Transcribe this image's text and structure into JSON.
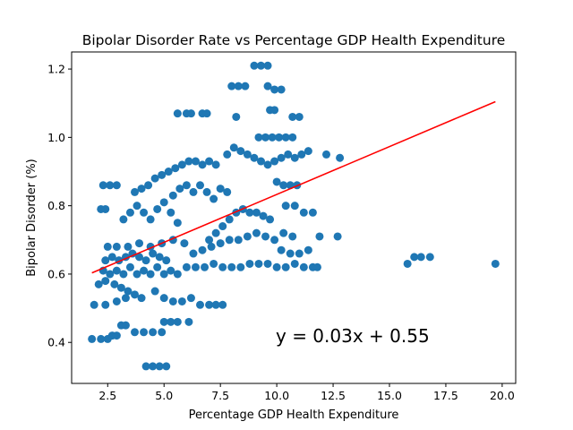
{
  "chart_data": {
    "type": "scatter",
    "title": "Bipolar Disorder Rate vs Percentage GDP Health Expenditure",
    "xlabel": "Percentage GDP Health Expenditure",
    "ylabel": "Bipolar Disorder (%)",
    "xlim": [
      0.9,
      20.6
    ],
    "ylim": [
      0.28,
      1.25
    ],
    "xticks": [
      2.5,
      5.0,
      7.5,
      10.0,
      12.5,
      15.0,
      17.5,
      20.0
    ],
    "xtick_labels": [
      "2.5",
      "5.0",
      "7.5",
      "10.0",
      "12.5",
      "15.0",
      "17.5",
      "20.0"
    ],
    "yticks": [
      0.4,
      0.6,
      0.8,
      1.0,
      1.2
    ],
    "ytick_labels": [
      "0.4",
      "0.6",
      "0.8",
      "1.0",
      "1.2"
    ],
    "grid": false,
    "point_color": "#1f77b4",
    "line_color": "#ff0000",
    "annotation": "y = 0.03x + 0.55",
    "fit": {
      "slope": 0.028,
      "intercept": 0.553,
      "x_range": [
        1.8,
        19.7
      ]
    },
    "points": [
      [
        1.8,
        0.41
      ],
      [
        2.2,
        0.41
      ],
      [
        2.5,
        0.41
      ],
      [
        2.7,
        0.42
      ],
      [
        2.9,
        0.42
      ],
      [
        1.9,
        0.51
      ],
      [
        2.4,
        0.51
      ],
      [
        2.9,
        0.52
      ],
      [
        3.3,
        0.53
      ],
      [
        2.1,
        0.57
      ],
      [
        2.4,
        0.58
      ],
      [
        2.8,
        0.57
      ],
      [
        3.1,
        0.56
      ],
      [
        3.4,
        0.55
      ],
      [
        3.7,
        0.54
      ],
      [
        4.0,
        0.53
      ],
      [
        2.3,
        0.61
      ],
      [
        2.6,
        0.6
      ],
      [
        2.9,
        0.61
      ],
      [
        3.2,
        0.6
      ],
      [
        3.5,
        0.62
      ],
      [
        3.8,
        0.6
      ],
      [
        4.1,
        0.61
      ],
      [
        4.4,
        0.6
      ],
      [
        4.7,
        0.62
      ],
      [
        5.0,
        0.6
      ],
      [
        5.3,
        0.61
      ],
      [
        5.6,
        0.6
      ],
      [
        2.4,
        0.64
      ],
      [
        2.7,
        0.65
      ],
      [
        3.0,
        0.64
      ],
      [
        3.3,
        0.65
      ],
      [
        3.6,
        0.66
      ],
      [
        3.9,
        0.65
      ],
      [
        4.2,
        0.64
      ],
      [
        4.5,
        0.66
      ],
      [
        4.8,
        0.65
      ],
      [
        5.1,
        0.64
      ],
      [
        2.5,
        0.68
      ],
      [
        2.9,
        0.68
      ],
      [
        3.4,
        0.68
      ],
      [
        3.9,
        0.69
      ],
      [
        4.4,
        0.68
      ],
      [
        4.9,
        0.69
      ],
      [
        5.4,
        0.7
      ],
      [
        5.9,
        0.69
      ],
      [
        3.1,
        0.45
      ],
      [
        3.3,
        0.45
      ],
      [
        3.7,
        0.43
      ],
      [
        4.1,
        0.43
      ],
      [
        4.5,
        0.43
      ],
      [
        4.9,
        0.43
      ],
      [
        4.2,
        0.33
      ],
      [
        4.5,
        0.33
      ],
      [
        4.8,
        0.33
      ],
      [
        5.1,
        0.33
      ],
      [
        5.0,
        0.46
      ],
      [
        5.3,
        0.46
      ],
      [
        5.6,
        0.46
      ],
      [
        6.1,
        0.46
      ],
      [
        4.6,
        0.55
      ],
      [
        5.0,
        0.53
      ],
      [
        5.4,
        0.52
      ],
      [
        5.8,
        0.52
      ],
      [
        6.2,
        0.53
      ],
      [
        6.6,
        0.51
      ],
      [
        7.0,
        0.51
      ],
      [
        7.3,
        0.51
      ],
      [
        7.6,
        0.51
      ],
      [
        3.2,
        0.76
      ],
      [
        3.5,
        0.78
      ],
      [
        3.8,
        0.8
      ],
      [
        4.1,
        0.78
      ],
      [
        4.4,
        0.76
      ],
      [
        4.7,
        0.79
      ],
      [
        5.0,
        0.81
      ],
      [
        5.3,
        0.78
      ],
      [
        5.6,
        0.75
      ],
      [
        2.2,
        0.79
      ],
      [
        2.4,
        0.79
      ],
      [
        2.3,
        0.86
      ],
      [
        2.6,
        0.86
      ],
      [
        2.9,
        0.86
      ],
      [
        3.7,
        0.84
      ],
      [
        4.0,
        0.85
      ],
      [
        4.3,
        0.86
      ],
      [
        4.6,
        0.88
      ],
      [
        4.9,
        0.89
      ],
      [
        5.2,
        0.9
      ],
      [
        5.5,
        0.91
      ],
      [
        5.8,
        0.92
      ],
      [
        6.1,
        0.93
      ],
      [
        6.4,
        0.93
      ],
      [
        6.7,
        0.92
      ],
      [
        7.0,
        0.93
      ],
      [
        7.3,
        0.92
      ],
      [
        5.4,
        0.83
      ],
      [
        5.7,
        0.85
      ],
      [
        6.0,
        0.86
      ],
      [
        6.3,
        0.84
      ],
      [
        6.6,
        0.86
      ],
      [
        6.9,
        0.84
      ],
      [
        7.2,
        0.82
      ],
      [
        7.5,
        0.85
      ],
      [
        7.8,
        0.84
      ],
      [
        5.6,
        1.07
      ],
      [
        6.0,
        1.07
      ],
      [
        6.2,
        1.07
      ],
      [
        6.7,
        1.07
      ],
      [
        6.9,
        1.07
      ],
      [
        7.0,
        0.7
      ],
      [
        7.3,
        0.72
      ],
      [
        7.6,
        0.74
      ],
      [
        7.9,
        0.76
      ],
      [
        8.2,
        0.78
      ],
      [
        8.5,
        0.79
      ],
      [
        8.8,
        0.78
      ],
      [
        9.1,
        0.78
      ],
      [
        9.4,
        0.77
      ],
      [
        9.7,
        0.76
      ],
      [
        6.0,
        0.62
      ],
      [
        6.4,
        0.62
      ],
      [
        6.8,
        0.62
      ],
      [
        7.2,
        0.63
      ],
      [
        7.6,
        0.62
      ],
      [
        8.0,
        0.62
      ],
      [
        8.4,
        0.62
      ],
      [
        8.8,
        0.63
      ],
      [
        9.2,
        0.63
      ],
      [
        9.6,
        0.63
      ],
      [
        10.0,
        0.62
      ],
      [
        10.4,
        0.62
      ],
      [
        10.8,
        0.63
      ],
      [
        11.2,
        0.62
      ],
      [
        11.6,
        0.62
      ],
      [
        6.3,
        0.66
      ],
      [
        6.7,
        0.67
      ],
      [
        7.1,
        0.68
      ],
      [
        7.5,
        0.69
      ],
      [
        7.9,
        0.7
      ],
      [
        8.3,
        0.7
      ],
      [
        8.7,
        0.71
      ],
      [
        9.1,
        0.72
      ],
      [
        9.5,
        0.71
      ],
      [
        9.9,
        0.7
      ],
      [
        10.3,
        0.72
      ],
      [
        10.7,
        0.71
      ],
      [
        7.8,
        0.95
      ],
      [
        8.1,
        0.97
      ],
      [
        8.4,
        0.96
      ],
      [
        8.7,
        0.95
      ],
      [
        9.0,
        0.94
      ],
      [
        9.3,
        0.93
      ],
      [
        9.6,
        0.92
      ],
      [
        9.9,
        0.93
      ],
      [
        10.2,
        0.94
      ],
      [
        10.5,
        0.95
      ],
      [
        10.8,
        0.94
      ],
      [
        11.1,
        0.95
      ],
      [
        11.4,
        0.96
      ],
      [
        8.0,
        1.15
      ],
      [
        8.3,
        1.15
      ],
      [
        8.6,
        1.15
      ],
      [
        9.6,
        1.15
      ],
      [
        9.9,
        1.14
      ],
      [
        10.2,
        1.14
      ],
      [
        9.0,
        1.21
      ],
      [
        9.3,
        1.21
      ],
      [
        9.6,
        1.21
      ],
      [
        8.2,
        1.06
      ],
      [
        9.7,
        1.08
      ],
      [
        9.9,
        1.08
      ],
      [
        10.7,
        1.06
      ],
      [
        11.0,
        1.06
      ],
      [
        9.2,
        1.0
      ],
      [
        9.5,
        1.0
      ],
      [
        9.8,
        1.0
      ],
      [
        10.1,
        1.0
      ],
      [
        10.4,
        1.0
      ],
      [
        10.7,
        1.0
      ],
      [
        10.0,
        0.87
      ],
      [
        10.3,
        0.86
      ],
      [
        10.6,
        0.86
      ],
      [
        10.9,
        0.86
      ],
      [
        10.4,
        0.8
      ],
      [
        10.8,
        0.8
      ],
      [
        11.2,
        0.78
      ],
      [
        11.6,
        0.78
      ],
      [
        10.2,
        0.67
      ],
      [
        10.6,
        0.66
      ],
      [
        11.0,
        0.66
      ],
      [
        11.4,
        0.67
      ],
      [
        11.8,
        0.62
      ],
      [
        11.9,
        0.71
      ],
      [
        12.7,
        0.71
      ],
      [
        12.2,
        0.95
      ],
      [
        12.8,
        0.94
      ],
      [
        15.8,
        0.63
      ],
      [
        16.1,
        0.65
      ],
      [
        16.4,
        0.65
      ],
      [
        16.8,
        0.65
      ],
      [
        19.7,
        0.63
      ]
    ]
  }
}
